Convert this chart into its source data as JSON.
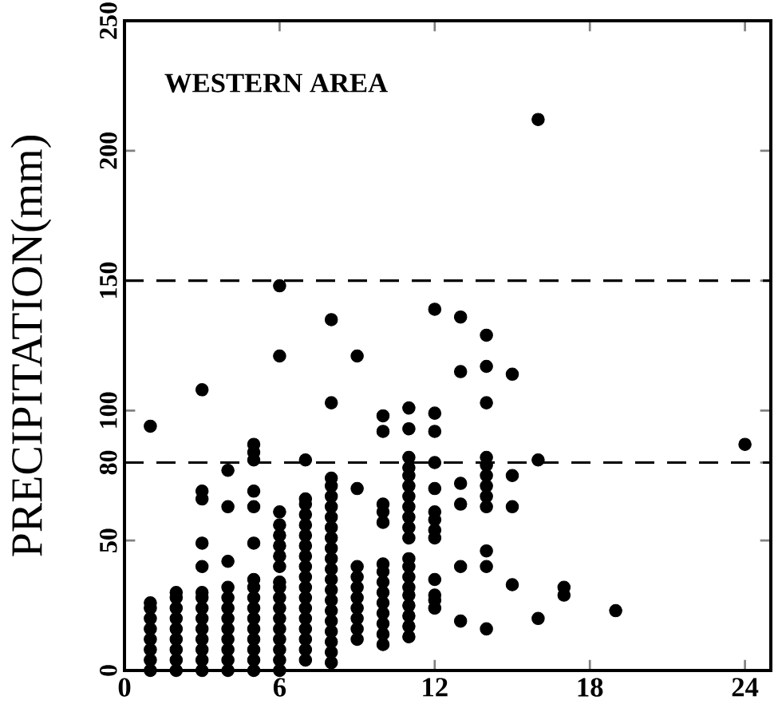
{
  "chart_data": {
    "type": "scatter",
    "title": "WESTERN AREA",
    "ylabel": "PRECIPITATION(mm)",
    "xlim": [
      0,
      25
    ],
    "ylim": [
      0,
      250
    ],
    "xticks": [
      0,
      6,
      12,
      18,
      24
    ],
    "yticks": [
      0,
      50,
      80,
      100,
      150,
      200,
      250
    ],
    "marker": "circle",
    "ref_lines": [
      {
        "axis": "y",
        "value": 150,
        "line_style": "dashed",
        "color": "#000000"
      },
      {
        "axis": "y",
        "value": 80,
        "line_style": "dashed",
        "color": "#000000"
      }
    ],
    "series": [
      {
        "color": "#000000",
        "x": [
          1,
          1,
          1,
          1,
          1,
          1,
          1,
          1,
          1,
          2,
          2,
          2,
          2,
          2,
          2,
          2,
          2,
          2,
          3,
          3,
          3,
          3,
          3,
          3,
          3,
          3,
          3,
          3,
          3,
          3,
          3,
          3,
          4,
          4,
          4,
          4,
          4,
          4,
          4,
          4,
          4,
          4,
          4,
          4,
          5,
          5,
          5,
          5,
          5,
          5,
          5,
          5,
          5,
          5,
          5,
          5,
          5,
          5,
          5,
          5,
          6,
          6,
          6,
          6,
          6,
          6,
          6,
          6,
          6,
          6,
          6,
          6,
          6,
          6,
          6,
          6,
          6,
          6,
          7,
          7,
          7,
          7,
          7,
          7,
          7,
          7,
          7,
          7,
          7,
          7,
          7,
          7,
          7,
          7,
          7,
          7,
          8,
          8,
          8,
          8,
          8,
          8,
          8,
          8,
          8,
          8,
          8,
          8,
          8,
          8,
          8,
          8,
          8,
          8,
          8,
          8,
          8,
          9,
          9,
          9,
          9,
          9,
          9,
          9,
          9,
          9,
          9,
          10,
          10,
          10,
          10,
          10,
          10,
          10,
          10,
          10,
          10,
          10,
          10,
          10,
          10,
          11,
          11,
          11,
          11,
          11,
          11,
          11,
          11,
          11,
          11,
          11,
          11,
          11,
          11,
          11,
          11,
          11,
          11,
          11,
          11,
          12,
          12,
          12,
          12,
          12,
          12,
          12,
          12,
          12,
          12,
          12,
          12,
          12,
          13,
          13,
          13,
          13,
          13,
          13,
          14,
          14,
          14,
          14,
          14,
          14,
          14,
          14,
          14,
          14,
          14,
          14,
          15,
          15,
          15,
          15,
          16,
          16,
          16,
          17,
          17,
          19,
          24
        ],
        "values": [
          0,
          4,
          8,
          12,
          16,
          20,
          24,
          26,
          94,
          0,
          4,
          8,
          12,
          16,
          20,
          24,
          28,
          30,
          0,
          4,
          8,
          12,
          16,
          20,
          24,
          28,
          30,
          40,
          49,
          66,
          69,
          108,
          0,
          4,
          8,
          12,
          16,
          20,
          24,
          28,
          32,
          42,
          63,
          77,
          0,
          4,
          8,
          12,
          16,
          20,
          24,
          28,
          32,
          35,
          49,
          63,
          69,
          81,
          84,
          87,
          0,
          4,
          8,
          12,
          16,
          20,
          24,
          28,
          32,
          34,
          40,
          44,
          48,
          52,
          56,
          61,
          121,
          148,
          4,
          8,
          12,
          16,
          20,
          24,
          28,
          32,
          36,
          40,
          44,
          48,
          52,
          56,
          60,
          64,
          66,
          81,
          3,
          7,
          11,
          15,
          19,
          23,
          27,
          31,
          35,
          39,
          43,
          47,
          51,
          55,
          59,
          63,
          67,
          71,
          74,
          103,
          135,
          12,
          16,
          20,
          24,
          28,
          32,
          36,
          40,
          70,
          121,
          10,
          14,
          18,
          22,
          26,
          30,
          34,
          38,
          41,
          57,
          61,
          64,
          92,
          98,
          13,
          17,
          21,
          25,
          29,
          32,
          36,
          40,
          43,
          51,
          55,
          59,
          63,
          67,
          71,
          75,
          78,
          82,
          93,
          101,
          24,
          27,
          29,
          35,
          51,
          54,
          58,
          61,
          70,
          80,
          92,
          99,
          139,
          19,
          40,
          64,
          72,
          115,
          136,
          16,
          40,
          46,
          63,
          67,
          71,
          75,
          79,
          82,
          103,
          117,
          129,
          33,
          63,
          75,
          114,
          20,
          81,
          212,
          29,
          32,
          23,
          87
        ]
      }
    ]
  }
}
